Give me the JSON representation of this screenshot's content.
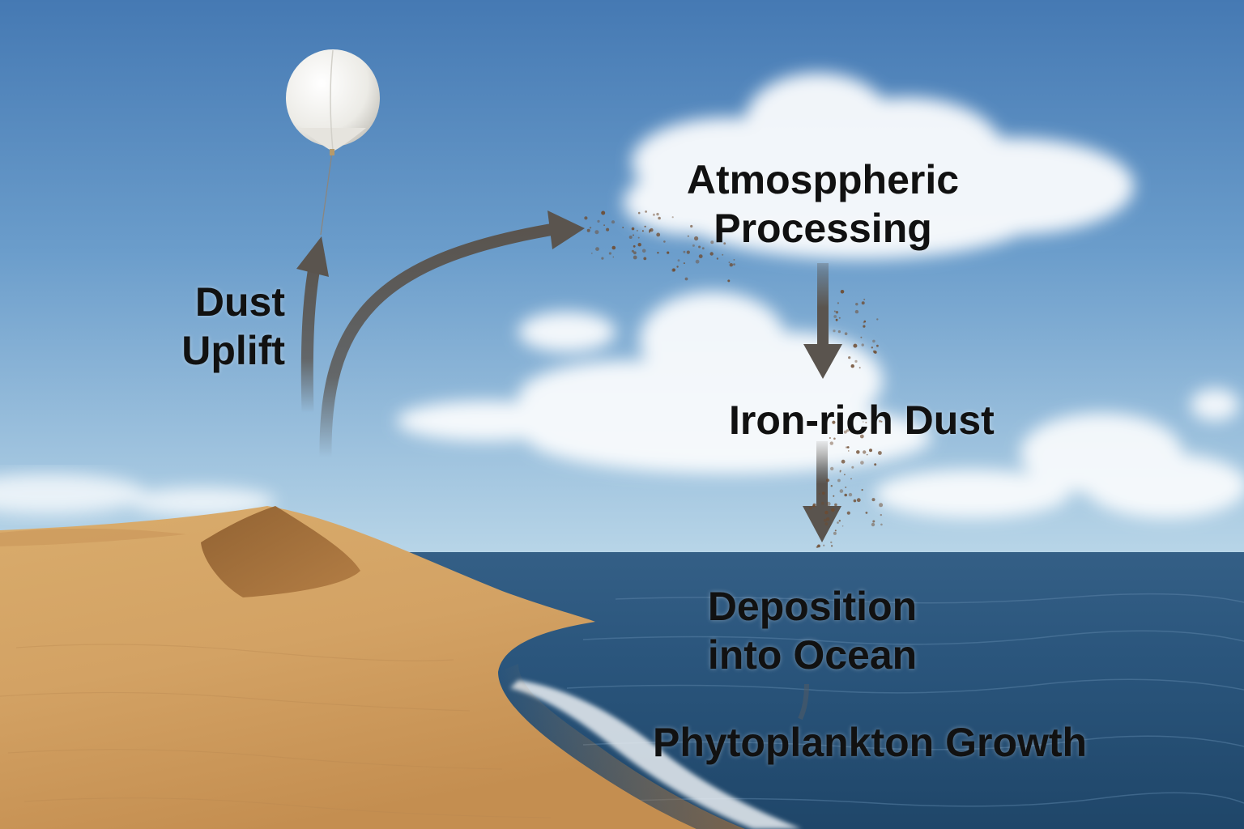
{
  "labels": {
    "dust_uplift": {
      "line1": "Dust",
      "line2": "Uplift"
    },
    "atmospheric_processing": {
      "line1": "Atmosppheric",
      "line2": "Processing"
    },
    "iron_rich_dust": "Iron-rich Dust",
    "deposition": {
      "line1": "Deposition",
      "line2": "into Ocean"
    },
    "phytoplankton": "Phytoplankton Growth"
  },
  "colors": {
    "sky_top": "#4a80b8",
    "sky_horizon": "#b5d3e6",
    "ocean_top": "#2f5f8a",
    "ocean_bottom": "#1d4568",
    "sand_light": "#e0b878",
    "sand_dark": "#b88245",
    "arrow": "#5a544e",
    "text": "#111111"
  }
}
